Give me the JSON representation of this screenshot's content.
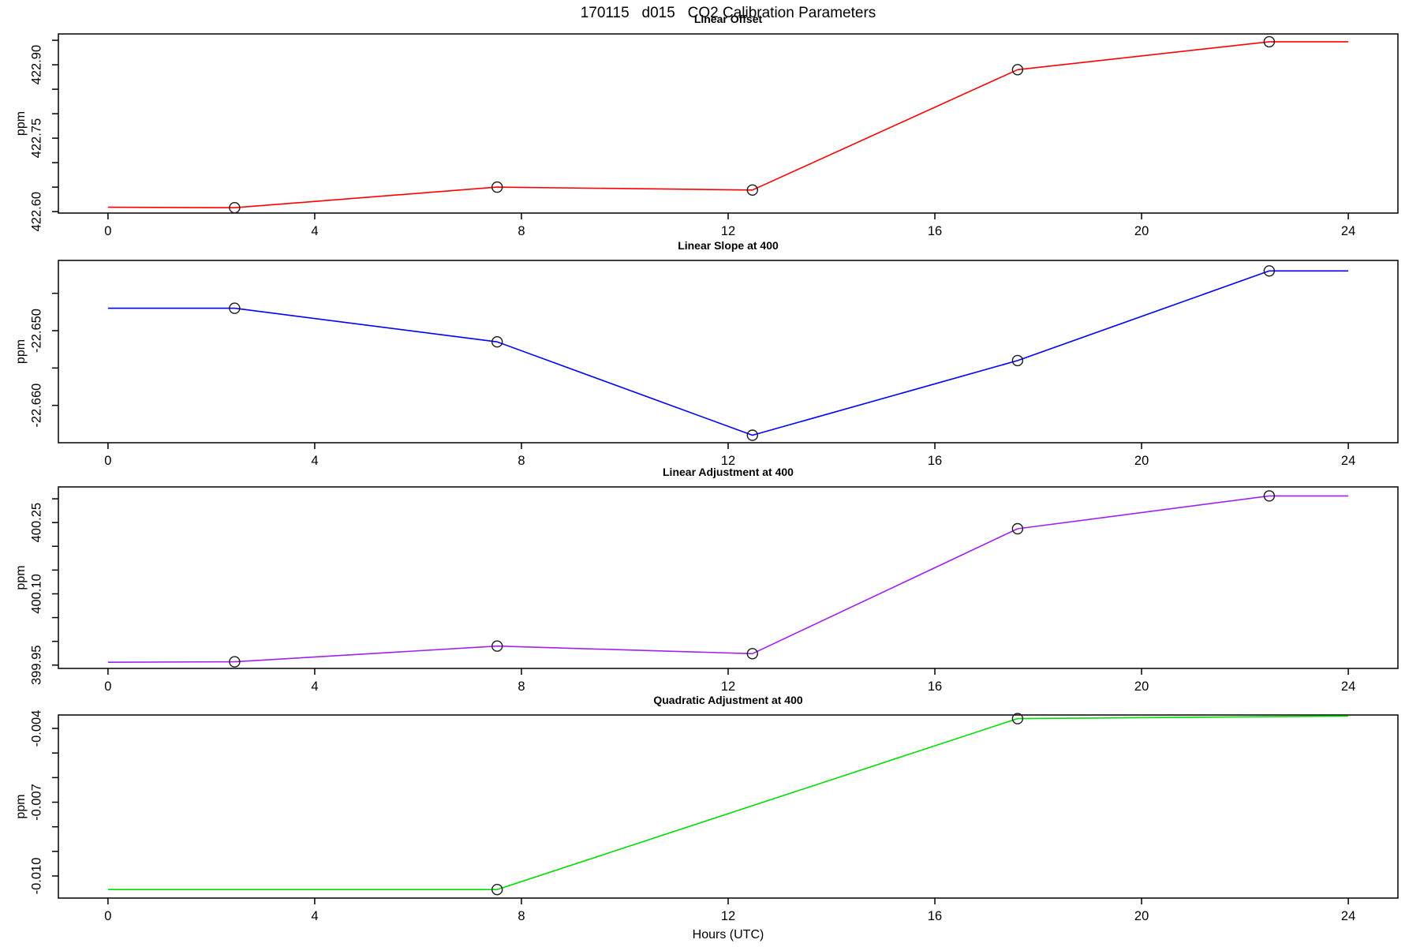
{
  "title": "170115   d015   CO2 Calibration Parameters",
  "xlabel": "Hours (UTC)",
  "axis_color": "#000000",
  "marker_color": "#1a1a1a",
  "xlim": [
    -0.96,
    24.96
  ],
  "xticks": [
    {
      "v": 0,
      "label": "0"
    },
    {
      "v": 4,
      "label": "4"
    },
    {
      "v": 8,
      "label": "8"
    },
    {
      "v": 12,
      "label": "12"
    },
    {
      "v": 16,
      "label": "16"
    },
    {
      "v": 20,
      "label": "20"
    },
    {
      "v": 24,
      "label": "24"
    }
  ],
  "chart_data": [
    {
      "type": "line",
      "title": "Linear Offset",
      "ylabel": "ppm",
      "color": "#ff0000",
      "x": [
        0,
        2.45,
        7.53,
        12.47,
        17.6,
        22.47,
        24
      ],
      "y": [
        422.609,
        422.608,
        422.65,
        422.644,
        422.89,
        422.947,
        422.947
      ],
      "marker_indices": [
        1,
        2,
        3,
        4,
        5
      ],
      "ylim": [
        422.597,
        422.963
      ],
      "yticks": [
        {
          "v": 422.6,
          "label": "422.60"
        },
        {
          "v": 422.65,
          "label": ""
        },
        {
          "v": 422.7,
          "label": ""
        },
        {
          "v": 422.75,
          "label": "422.75"
        },
        {
          "v": 422.8,
          "label": ""
        },
        {
          "v": 422.85,
          "label": ""
        },
        {
          "v": 422.9,
          "label": "422.90"
        },
        {
          "v": 422.95,
          "label": ""
        }
      ]
    },
    {
      "type": "line",
      "title": "Linear Slope at 400",
      "ylabel": "ppm",
      "color": "#0000ff",
      "x": [
        0,
        2.45,
        7.53,
        12.47,
        17.6,
        22.47,
        24
      ],
      "y": [
        -22.647,
        -22.647,
        -22.6515,
        -22.664,
        -22.654,
        -22.642,
        -22.642
      ],
      "marker_indices": [
        1,
        2,
        3,
        4,
        5
      ],
      "ylim": [
        -22.665,
        -22.6406
      ],
      "yticks": [
        {
          "v": -22.66,
          "label": "-22.660"
        },
        {
          "v": -22.655,
          "label": ""
        },
        {
          "v": -22.65,
          "label": "-22.650"
        },
        {
          "v": -22.645,
          "label": ""
        }
      ]
    },
    {
      "type": "line",
      "title": "Linear Adjustment at 400",
      "ylabel": "ppm",
      "color": "#a020f0",
      "x": [
        0,
        2.45,
        7.53,
        12.47,
        17.6,
        22.47,
        24
      ],
      "y": [
        399.956,
        399.957,
        399.99,
        399.974,
        400.237,
        400.306,
        400.306
      ],
      "marker_indices": [
        1,
        2,
        3,
        4,
        5
      ],
      "ylim": [
        399.943,
        400.325
      ],
      "yticks": [
        {
          "v": 399.95,
          "label": "399.95"
        },
        {
          "v": 400.0,
          "label": ""
        },
        {
          "v": 400.05,
          "label": ""
        },
        {
          "v": 400.1,
          "label": "400.10"
        },
        {
          "v": 400.15,
          "label": ""
        },
        {
          "v": 400.2,
          "label": ""
        },
        {
          "v": 400.25,
          "label": "400.25"
        },
        {
          "v": 400.3,
          "label": ""
        }
      ]
    },
    {
      "type": "line",
      "title": "Quadratic Adjustment at 400",
      "ylabel": "ppm",
      "color": "#00dd00",
      "x": [
        0,
        7.53,
        17.6,
        24
      ],
      "y": [
        -0.01055,
        -0.01055,
        -0.0036,
        -0.0035
      ],
      "marker_indices": [
        1,
        2
      ],
      "ylim": [
        -0.010898,
        -0.003454
      ],
      "yticks": [
        {
          "v": -0.01,
          "label": "-0.010"
        },
        {
          "v": -0.009,
          "label": ""
        },
        {
          "v": -0.008,
          "label": ""
        },
        {
          "v": -0.007,
          "label": "-0.007"
        },
        {
          "v": -0.006,
          "label": ""
        },
        {
          "v": -0.005,
          "label": ""
        },
        {
          "v": -0.004,
          "label": "-0.004"
        }
      ]
    }
  ]
}
